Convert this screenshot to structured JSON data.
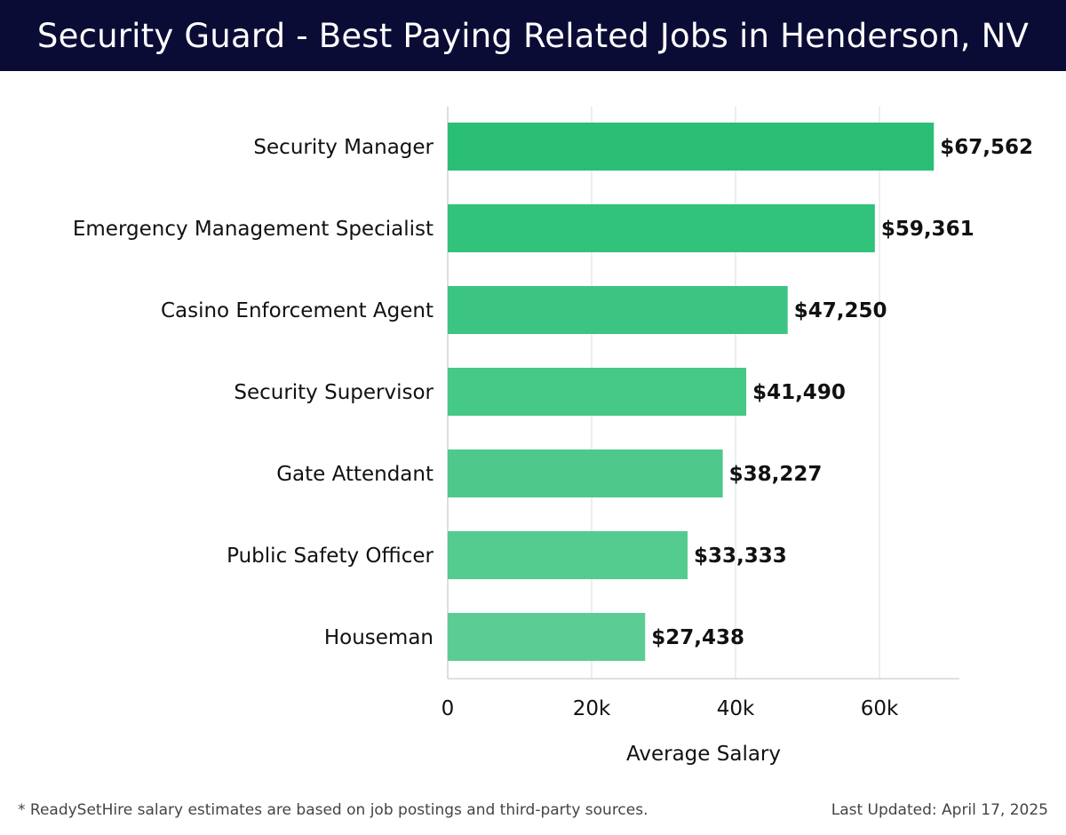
{
  "header": {
    "title": "Security Guard - Best Paying Related Jobs in Henderson, NV"
  },
  "chart_data": {
    "type": "bar",
    "orientation": "horizontal",
    "title": "Security Guard - Best Paying Related Jobs in Henderson, NV",
    "xlabel": "Average Salary",
    "ylabel": "",
    "xlim": [
      0,
      71000
    ],
    "grid": true,
    "categories": [
      "Security Manager",
      "Emergency Management Specialist",
      "Casino Enforcement Agent",
      "Security Supervisor",
      "Gate Attendant",
      "Public Safety Officer",
      "Houseman"
    ],
    "values": [
      67562,
      59361,
      47250,
      41490,
      38227,
      33333,
      27438
    ],
    "value_labels": [
      "$67,562",
      "$59,361",
      "$47,250",
      "$41,490",
      "$38,227",
      "$33,333",
      "$27,438"
    ],
    "x_ticks": [
      0,
      20000,
      40000,
      60000
    ],
    "x_tick_labels": [
      "0",
      "20k",
      "40k",
      "60k"
    ],
    "bar_colors": [
      "#2bbf75",
      "#31c27b",
      "#3cc582",
      "#46c887",
      "#4ec98b",
      "#54cb8f",
      "#5ccc95"
    ]
  },
  "footer": {
    "note": "* ReadySetHire salary estimates are based on job postings and third-party sources.",
    "updated": "Last Updated: April 17, 2025"
  }
}
